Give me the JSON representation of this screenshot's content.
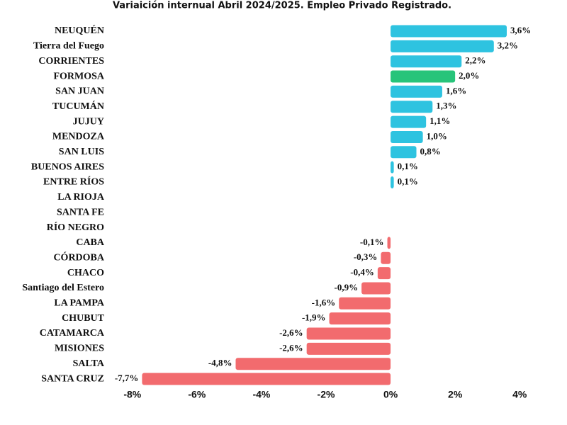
{
  "chart_data": {
    "type": "hbar",
    "title": "Variaición internual Abril 2024/2025. Empleo Privado Registrado.",
    "categories": [
      "NEUQUÉN",
      "Tierra del Fuego",
      "CORRIENTES",
      "FORMOSA",
      "SAN JUAN",
      "TUCUMÁN",
      "JUJUY",
      "MENDOZA",
      "SAN LUIS",
      "BUENOS AIRES",
      "ENTRE RÍOS",
      "LA RIOJA",
      "SANTA FE",
      "RÍO NEGRO",
      "CABA",
      "CÓRDOBA",
      "CHACO",
      "Santiago del Estero",
      "LA PAMPA",
      "CHUBUT",
      "CATAMARCA",
      "MISIONES",
      "SALTA",
      "SANTA CRUZ"
    ],
    "values": [
      3.6,
      3.2,
      2.2,
      2.0,
      1.6,
      1.3,
      1.1,
      1.0,
      0.8,
      0.1,
      0.1,
      0,
      0,
      0,
      -0.1,
      -0.3,
      -0.4,
      -0.9,
      -1.6,
      -1.9,
      -2.6,
      -2.6,
      -4.8,
      -7.7
    ],
    "value_labels": [
      "3,6%",
      "3,2%",
      "2,2%",
      "2,0%",
      "1,6%",
      "1,3%",
      "1,1%",
      "1,0%",
      "0,8%",
      "0,1%",
      "0,1%",
      null,
      null,
      null,
      "-0,1%",
      "-0,3%",
      "-0,4%",
      "-0,9%",
      "-1,6%",
      "-1,9%",
      "-2,6%",
      "-2,6%",
      "-4,8%",
      "-7,7%"
    ],
    "colors": [
      "#2ec3e0",
      "#2ec3e0",
      "#2ec3e0",
      "#27c47a",
      "#2ec3e0",
      "#2ec3e0",
      "#2ec3e0",
      "#2ec3e0",
      "#2ec3e0",
      "#2ec3e0",
      "#2ec3e0",
      "#2ec3e0",
      "#2ec3e0",
      "#2ec3e0",
      "#f26b6e",
      "#f26b6e",
      "#f26b6e",
      "#f26b6e",
      "#f26b6e",
      "#f26b6e",
      "#f26b6e",
      "#f26b6e",
      "#f26b6e",
      "#f26b6e"
    ],
    "xlim": [
      -8.5,
      4.5
    ],
    "xticks": [
      {
        "value": -8,
        "label": "-8%"
      },
      {
        "value": -6,
        "label": "-6%"
      },
      {
        "value": -4,
        "label": "-4%"
      },
      {
        "value": -2,
        "label": "-2%"
      },
      {
        "value": 0,
        "label": "0%"
      },
      {
        "value": 2,
        "label": "2%"
      },
      {
        "value": 4,
        "label": "4%"
      }
    ]
  }
}
